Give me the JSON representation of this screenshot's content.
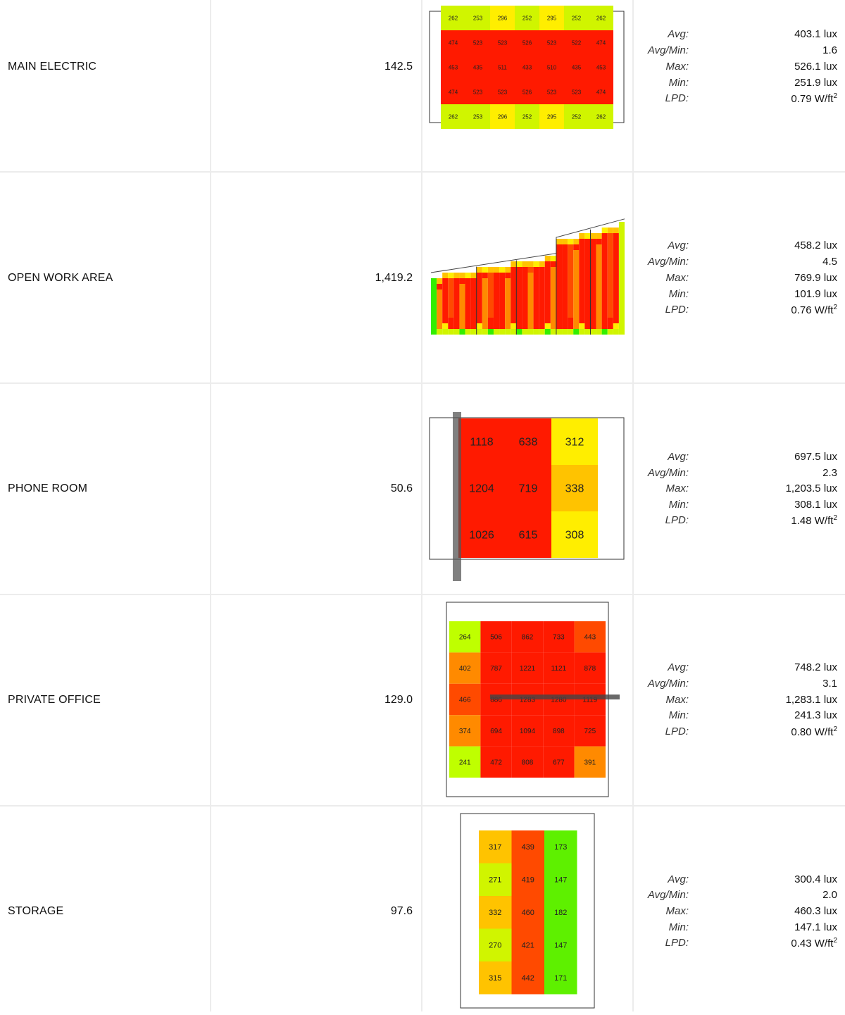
{
  "stat_labels": {
    "avg": "Avg:",
    "avg_min": "Avg/Min:",
    "max": "Max:",
    "min": "Min:",
    "lpd": "LPD:"
  },
  "units": {
    "lux": "lux",
    "lpd": "W/ft",
    "lpd_sup": "2"
  },
  "colors": {
    "red": "#ff1a00",
    "orange_red": "#ff4a00",
    "orange": "#ff8a00",
    "amber": "#ffc300",
    "yellow": "#ffee00",
    "yellow_green": "#d0f500",
    "lime": "#bfff00",
    "green": "#5ef000",
    "bright_green": "#33ee00"
  },
  "rooms": [
    {
      "name": "MAIN ELECTRIC",
      "area": "142.5",
      "stats": {
        "avg": "403.1",
        "avg_min": "1.6",
        "max": "526.1",
        "min": "251.9",
        "lpd": "0.79"
      }
    },
    {
      "name": "OPEN WORK AREA",
      "area": "1,419.2",
      "stats": {
        "avg": "458.2",
        "avg_min": "4.5",
        "max": "769.9",
        "min": "101.9",
        "lpd": "0.76"
      }
    },
    {
      "name": "PHONE ROOM",
      "area": "50.6",
      "stats": {
        "avg": "697.5",
        "avg_min": "2.3",
        "max": "1,203.5",
        "min": "308.1",
        "lpd": "1.48"
      }
    },
    {
      "name": "PRIVATE OFFICE",
      "area": "129.0",
      "stats": {
        "avg": "748.2",
        "avg_min": "3.1",
        "max": "1,283.1",
        "min": "241.3",
        "lpd": "0.80"
      }
    },
    {
      "name": "STORAGE",
      "area": "97.6",
      "stats": {
        "avg": "300.4",
        "avg_min": "2.0",
        "max": "460.3",
        "min": "147.1",
        "lpd": "0.43"
      }
    }
  ],
  "chart_data": [
    {
      "type": "heatmap",
      "room": "MAIN ELECTRIC",
      "values": [
        [
          "262",
          "253",
          "296",
          "252",
          "295",
          "252",
          "262"
        ],
        [
          "474",
          "523",
          "523",
          "526",
          "523",
          "522",
          "474"
        ],
        [
          "453",
          "435",
          "511",
          "433",
          "510",
          "435",
          "453"
        ],
        [
          "474",
          "523",
          "523",
          "526",
          "523",
          "523",
          "474"
        ],
        [
          "262",
          "253",
          "296",
          "252",
          "295",
          "252",
          "262"
        ]
      ]
    },
    {
      "type": "heatmap",
      "room": "OPEN WORK AREA",
      "values": []
    },
    {
      "type": "heatmap",
      "room": "PHONE ROOM",
      "values": [
        [
          "1118",
          "638",
          "312"
        ],
        [
          "1204",
          "719",
          "338"
        ],
        [
          "1026",
          "615",
          "308"
        ]
      ]
    },
    {
      "type": "heatmap",
      "room": "PRIVATE OFFICE",
      "values": [
        [
          "264",
          "506",
          "862",
          "733",
          "443"
        ],
        [
          "402",
          "787",
          "1221",
          "1121",
          "878"
        ],
        [
          "466",
          "886",
          "1283",
          "1280",
          "1119"
        ],
        [
          "374",
          "694",
          "1094",
          "898",
          "725"
        ],
        [
          "241",
          "472",
          "808",
          "677",
          "391"
        ]
      ]
    },
    {
      "type": "heatmap",
      "room": "STORAGE",
      "values": [
        [
          "317",
          "439",
          "173"
        ],
        [
          "271",
          "419",
          "147"
        ],
        [
          "332",
          "460",
          "182"
        ],
        [
          "270",
          "421",
          "147"
        ],
        [
          "315",
          "442",
          "171"
        ]
      ]
    }
  ]
}
